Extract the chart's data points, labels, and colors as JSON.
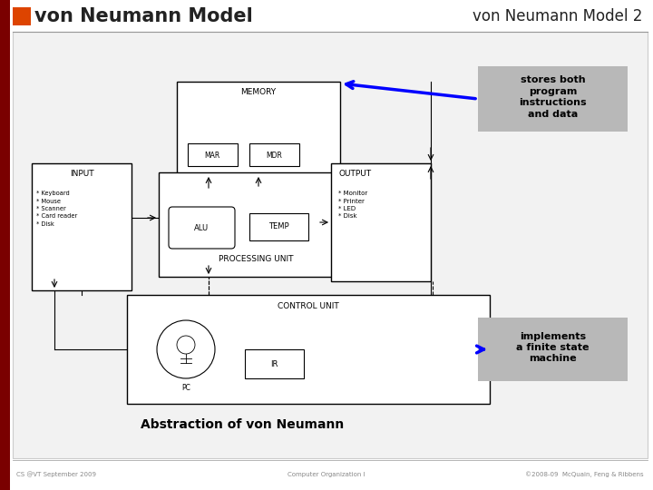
{
  "title_left": "von Neumann Model",
  "title_right": "von Neumann Model 2",
  "title_color_left": "#222222",
  "title_color_right": "#222222",
  "orange_rect_color": "#dd4400",
  "bg_color": "#ffffff",
  "slide_bg": "#f0f0f0",
  "dark_red_bar": "#7a0000",
  "annotation1_text": "stores both\nprogram\ninstructions\nand data",
  "annotation2_text": "implements\na finite state\nmachine",
  "annotation_bg": "#b8b8b8",
  "bottom_left": "CS @VT September 2009",
  "bottom_center": "Computer Organization I",
  "bottom_right": "©2008-09  McQuain, Feng & Ribbens",
  "subtitle": "Abstraction of von Neumann"
}
